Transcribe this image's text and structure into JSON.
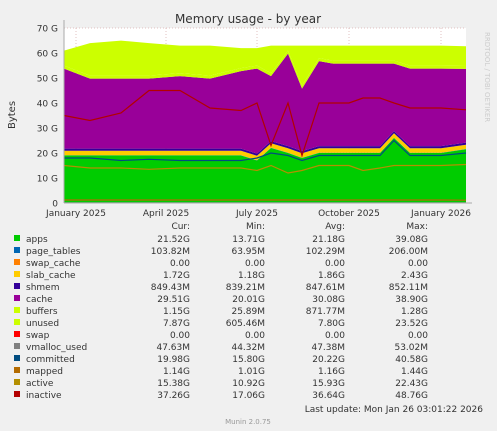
{
  "chart_data": {
    "type": "area",
    "title": "Memory usage - by year",
    "ylabel": "Bytes",
    "side_label": "RRDTOOL / TOBI OETIKER",
    "ylim": [
      0,
      70
    ],
    "y_unit": "G",
    "y_ticks": [
      "0",
      "10 G",
      "20 G",
      "30 G",
      "40 G",
      "50 G",
      "60 G",
      "70 G"
    ],
    "x_range": [
      "2024-12-20",
      "2026-01-26"
    ],
    "x_ticks": [
      {
        "date": "2025-01-01",
        "label": "January 2025"
      },
      {
        "date": "2025-04-01",
        "label": "April 2025"
      },
      {
        "date": "2025-07-01",
        "label": "July 2025"
      },
      {
        "date": "2025-10-01",
        "label": "October 2025"
      },
      {
        "date": "2026-01-01",
        "label": "January 2026"
      }
    ],
    "x": [
      "2024-12-20",
      "2025-01-15",
      "2025-02-15",
      "2025-03-15",
      "2025-04-15",
      "2025-05-15",
      "2025-06-15",
      "2025-07-01",
      "2025-07-15",
      "2025-08-01",
      "2025-08-15",
      "2025-09-01",
      "2025-09-15",
      "2025-10-01",
      "2025-10-15",
      "2025-11-01",
      "2025-11-15",
      "2025-12-01",
      "2025-12-15",
      "2026-01-01",
      "2026-01-26"
    ],
    "stack_order": [
      "apps",
      "page_tables",
      "swap_cache",
      "slab_cache",
      "shmem",
      "cache",
      "buffers",
      "unused",
      "swap"
    ],
    "series": [
      {
        "name": "apps",
        "color": "#00cc00",
        "values": [
          19,
          19,
          19,
          19,
          19,
          19,
          19,
          17,
          22,
          20,
          18,
          20,
          20,
          20,
          20,
          20,
          26,
          20,
          20,
          20,
          21.5
        ]
      },
      {
        "name": "page_tables",
        "color": "#0066b3",
        "values": [
          0.1,
          0.1,
          0.1,
          0.1,
          0.1,
          0.1,
          0.1,
          0.1,
          0.1,
          0.1,
          0.1,
          0.1,
          0.1,
          0.1,
          0.1,
          0.1,
          0.1,
          0.1,
          0.1,
          0.1,
          0.1
        ]
      },
      {
        "name": "swap_cache",
        "color": "#ff8000",
        "values": [
          0,
          0,
          0,
          0,
          0,
          0,
          0,
          0,
          0,
          0,
          0,
          0,
          0,
          0,
          0,
          0,
          0,
          0,
          0,
          0,
          0
        ]
      },
      {
        "name": "slab_cache",
        "color": "#ffcc00",
        "values": [
          1.8,
          1.8,
          1.8,
          1.8,
          1.8,
          1.8,
          1.8,
          1.8,
          1.8,
          1.8,
          1.8,
          1.8,
          1.8,
          1.8,
          1.8,
          1.8,
          1.8,
          1.8,
          1.8,
          1.8,
          1.7
        ]
      },
      {
        "name": "shmem",
        "color": "#330099",
        "values": [
          0.85,
          0.85,
          0.85,
          0.85,
          0.85,
          0.85,
          0.85,
          0.85,
          0.85,
          0.85,
          0.85,
          0.85,
          0.85,
          0.85,
          0.85,
          0.85,
          0.85,
          0.85,
          0.85,
          0.85,
          0.85
        ]
      },
      {
        "name": "cache",
        "color": "#990099",
        "values": [
          32,
          28,
          28,
          28,
          29,
          28,
          31,
          34,
          26,
          37,
          25,
          34,
          33,
          33,
          33,
          33,
          27,
          31,
          31,
          31,
          29.5
        ]
      },
      {
        "name": "buffers",
        "color": "#ccff00",
        "values": [
          1.2,
          1.2,
          1.2,
          1.2,
          1.2,
          1.2,
          1.2,
          1.2,
          1.2,
          1.2,
          1.2,
          1.2,
          1.2,
          1.2,
          1.2,
          1.2,
          1.2,
          1.2,
          1.2,
          1.2,
          1.15
        ]
      },
      {
        "name": "unused",
        "color": "#ccff00",
        "values": [
          6,
          13,
          14,
          13,
          11,
          12,
          8,
          7,
          11,
          2,
          16,
          5,
          6,
          6,
          6,
          6,
          6,
          8,
          8,
          8,
          7.9
        ]
      },
      {
        "name": "swap",
        "color": "#ff0000",
        "values": [
          0,
          0,
          0,
          0,
          0,
          0,
          0,
          0,
          0,
          0,
          0,
          0,
          0,
          0,
          0,
          0,
          0,
          0,
          0,
          0,
          0
        ]
      }
    ],
    "lines": [
      {
        "name": "vmalloc_used",
        "color": "#808080",
        "values": [
          0.05,
          0.05,
          0.05,
          0.05,
          0.05,
          0.05,
          0.05,
          0.05,
          0.05,
          0.05,
          0.05,
          0.05,
          0.05,
          0.05,
          0.05,
          0.05,
          0.05,
          0.05,
          0.05,
          0.05,
          0.05
        ]
      },
      {
        "name": "committed",
        "color": "#004c80",
        "values": [
          18,
          18,
          17,
          17.5,
          17,
          17,
          17,
          18,
          20,
          19,
          17,
          19,
          19,
          19,
          19,
          19,
          25,
          19,
          19,
          19,
          20
        ]
      },
      {
        "name": "mapped",
        "color": "#b36b00",
        "values": [
          1.2,
          1.2,
          1.2,
          1.2,
          1.2,
          1.2,
          1.2,
          1.2,
          1.2,
          1.2,
          1.2,
          1.2,
          1.2,
          1.2,
          1.2,
          1.2,
          1.2,
          1.2,
          1.2,
          1.2,
          1.14
        ]
      },
      {
        "name": "active",
        "color": "#b38f00",
        "values": [
          15,
          14,
          14,
          13.5,
          14,
          14,
          14,
          13,
          15,
          12,
          13,
          15,
          15,
          15,
          13,
          14,
          15,
          15,
          15,
          15,
          15.4
        ]
      },
      {
        "name": "inactive",
        "color": "#b30000",
        "values": [
          35,
          33,
          36,
          45,
          45,
          38,
          37,
          40,
          23,
          40,
          19,
          40,
          40,
          40,
          42,
          42,
          40,
          38,
          38,
          38,
          37.3
        ]
      }
    ],
    "legend": {
      "headers": [
        "Cur:",
        "Min:",
        "Avg:",
        "Max:"
      ],
      "rows": [
        {
          "name": "apps",
          "color": "#00cc00",
          "cur": "21.52G",
          "min": "13.71G",
          "avg": "21.18G",
          "max": "39.08G"
        },
        {
          "name": "page_tables",
          "color": "#0066b3",
          "cur": "103.82M",
          "min": "63.95M",
          "avg": "102.29M",
          "max": "206.00M"
        },
        {
          "name": "swap_cache",
          "color": "#ff8000",
          "cur": "0.00",
          "min": "0.00",
          "avg": "0.00",
          "max": "0.00"
        },
        {
          "name": "slab_cache",
          "color": "#ffcc00",
          "cur": "1.72G",
          "min": "1.18G",
          "avg": "1.86G",
          "max": "2.43G"
        },
        {
          "name": "shmem",
          "color": "#330099",
          "cur": "849.43M",
          "min": "839.21M",
          "avg": "847.61M",
          "max": "852.11M"
        },
        {
          "name": "cache",
          "color": "#990099",
          "cur": "29.51G",
          "min": "20.01G",
          "avg": "30.08G",
          "max": "38.90G"
        },
        {
          "name": "buffers",
          "color": "#ccff00",
          "cur": "1.15G",
          "min": "25.89M",
          "avg": "871.77M",
          "max": "1.28G"
        },
        {
          "name": "unused",
          "color": "#ccff00",
          "cur": "7.87G",
          "min": "605.46M",
          "avg": "7.80G",
          "max": "23.52G"
        },
        {
          "name": "swap",
          "color": "#ff0000",
          "cur": "0.00",
          "min": "0.00",
          "avg": "0.00",
          "max": "0.00"
        },
        {
          "name": "vmalloc_used",
          "color": "#808080",
          "cur": "47.63M",
          "min": "44.32M",
          "avg": "47.38M",
          "max": "53.02M"
        },
        {
          "name": "committed",
          "color": "#004c80",
          "cur": "19.98G",
          "min": "15.80G",
          "avg": "20.22G",
          "max": "40.58G"
        },
        {
          "name": "mapped",
          "color": "#b36b00",
          "cur": "1.14G",
          "min": "1.01G",
          "avg": "1.16G",
          "max": "1.44G"
        },
        {
          "name": "active",
          "color": "#b38f00",
          "cur": "15.38G",
          "min": "10.92G",
          "avg": "15.93G",
          "max": "22.43G"
        },
        {
          "name": "inactive",
          "color": "#b30000",
          "cur": "37.26G",
          "min": "17.06G",
          "avg": "36.64G",
          "max": "48.76G"
        }
      ]
    },
    "last_update": "Last update: Mon Jan 26 03:01:22 2026",
    "footer": "Munin 2.0.75"
  }
}
